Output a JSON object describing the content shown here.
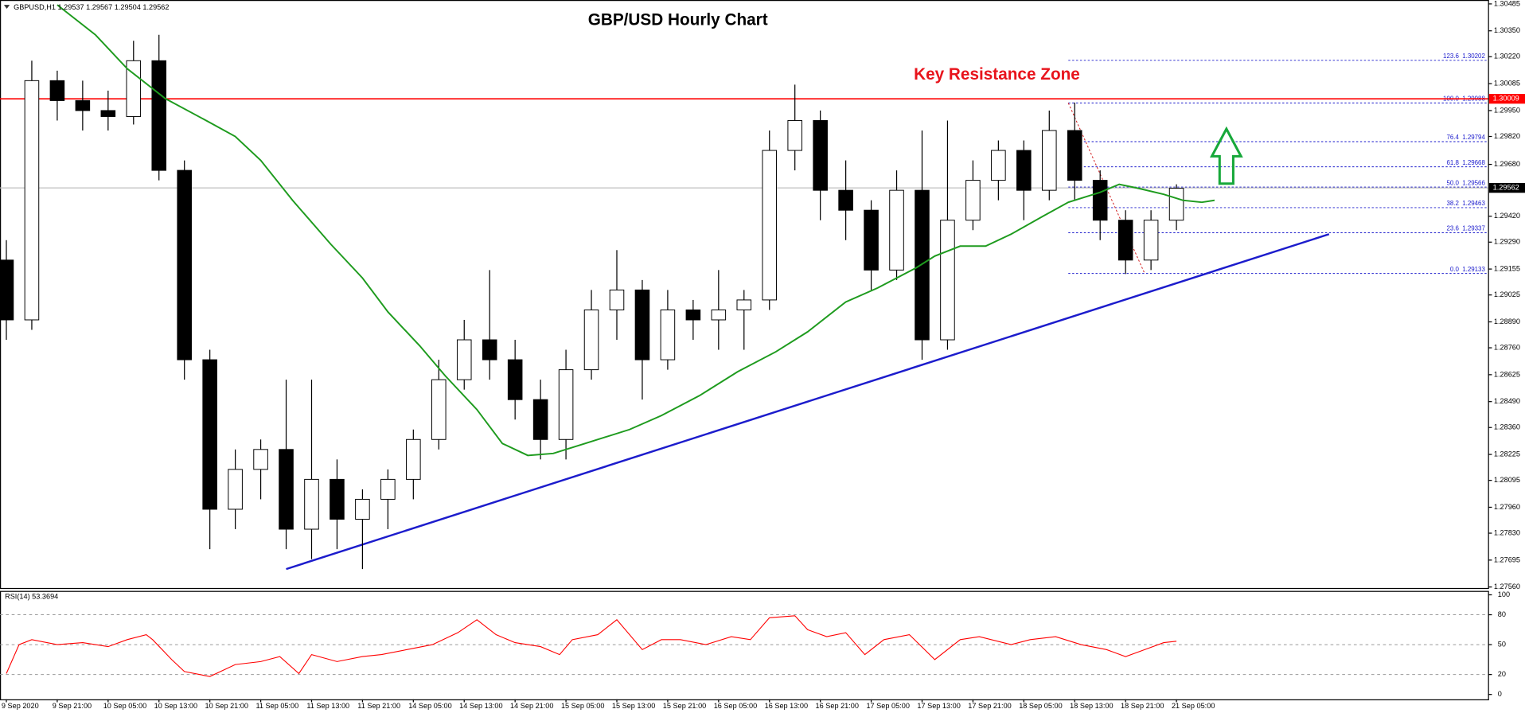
{
  "chart_data": [
    {
      "type": "candlestick",
      "title": "GBP/USD Hourly Chart",
      "header": "GBPUSD,H1  1.29537 1.29567 1.29504 1.29562",
      "annotation": "Key Resistance Zone",
      "x": [
        0,
        4,
        8,
        12,
        16,
        20,
        24,
        28,
        32,
        36,
        40,
        44,
        48,
        52,
        56,
        60,
        64,
        68,
        72,
        76,
        80,
        84,
        88,
        92,
        96,
        100,
        104,
        108,
        112,
        116,
        120,
        124,
        128,
        132,
        136,
        140,
        144,
        148,
        152,
        156,
        160,
        164,
        168,
        172,
        176,
        180,
        184
      ],
      "open": [
        1.292,
        1.289,
        1.301,
        1.3,
        1.2995,
        1.2992,
        1.302,
        1.2965,
        1.287,
        1.2795,
        1.2815,
        1.2825,
        1.2785,
        1.281,
        1.279,
        1.28,
        1.281,
        1.283,
        1.286,
        1.288,
        1.287,
        1.285,
        1.283,
        1.2865,
        1.2895,
        1.2905,
        1.287,
        1.2895,
        1.289,
        1.2895,
        1.29,
        1.2975,
        1.299,
        1.2955,
        1.2945,
        1.2915,
        1.2955,
        1.288,
        1.294,
        1.296,
        1.2975,
        1.2955,
        1.2985,
        1.296,
        1.294,
        1.292,
        1.294
      ],
      "high": [
        1.293,
        1.302,
        1.3015,
        1.301,
        1.3005,
        1.303,
        1.3033,
        1.297,
        1.2875,
        1.2825,
        1.283,
        1.286,
        1.286,
        1.282,
        1.2805,
        1.2815,
        1.2835,
        1.287,
        1.289,
        1.2915,
        1.288,
        1.286,
        1.2875,
        1.2905,
        1.2925,
        1.291,
        1.2905,
        1.29,
        1.2915,
        1.2905,
        1.2985,
        1.3008,
        1.2995,
        1.297,
        1.295,
        1.2965,
        1.2985,
        1.299,
        1.297,
        1.298,
        1.298,
        1.2995,
        1.2999,
        1.2965,
        1.2945,
        1.2945,
        1.2958
      ],
      "low": [
        1.288,
        1.2885,
        1.299,
        1.2985,
        1.2985,
        1.2988,
        1.296,
        1.286,
        1.2775,
        1.2785,
        1.28,
        1.2775,
        1.277,
        1.2775,
        1.2765,
        1.2785,
        1.28,
        1.2825,
        1.2855,
        1.286,
        1.284,
        1.282,
        1.282,
        1.286,
        1.288,
        1.285,
        1.2865,
        1.288,
        1.2875,
        1.2875,
        1.2895,
        1.2965,
        1.294,
        1.293,
        1.2905,
        1.291,
        1.287,
        1.2875,
        1.2935,
        1.295,
        1.294,
        1.295,
        1.295,
        1.293,
        1.2913,
        1.2915,
        1.2935
      ],
      "close": [
        1.289,
        1.301,
        1.3,
        1.2995,
        1.2992,
        1.302,
        1.2965,
        1.287,
        1.2795,
        1.2815,
        1.2825,
        1.2785,
        1.281,
        1.279,
        1.28,
        1.281,
        1.283,
        1.286,
        1.288,
        1.287,
        1.285,
        1.283,
        1.2865,
        1.2895,
        1.2905,
        1.287,
        1.2895,
        1.289,
        1.2895,
        1.29,
        1.2975,
        1.299,
        1.2955,
        1.2945,
        1.2915,
        1.2955,
        1.288,
        1.294,
        1.296,
        1.2975,
        1.2955,
        1.2985,
        1.296,
        1.294,
        1.292,
        1.294,
        1.2956
      ],
      "up_color": "#ffffff",
      "down_color": "#000000",
      "wick_color": "#000000",
      "xlim": [
        -1,
        233
      ],
      "ylim": [
        1.2756,
        1.30485
      ],
      "yticks": [
        1.30485,
        {
          "value": 1.3035,
          "label": "1.30350"
        },
        {
          "value": 1.3022,
          "label": "1.30220"
        },
        1.30085,
        {
          "value": 1.2995,
          "label": "1.29950"
        },
        {
          "value": 1.2982,
          "label": "1.29820"
        },
        {
          "value": 1.2968,
          "label": "1.29680"
        },
        {
          "value": 1.2942,
          "label": "1.29420"
        },
        {
          "value": 1.2929,
          "label": "1.29290"
        },
        1.29155,
        1.29025,
        {
          "value": 1.2889,
          "label": "1.28890"
        },
        {
          "value": 1.2876,
          "label": "1.28760"
        },
        1.28625,
        {
          "value": 1.2849,
          "label": "1.28490"
        },
        {
          "value": 1.2836,
          "label": "1.28360"
        },
        1.28225,
        1.28095,
        {
          "value": 1.2796,
          "label": "1.27960"
        },
        {
          "value": 1.2783,
          "label": "1.27830"
        },
        1.27695,
        {
          "value": 1.2756,
          "label": "1.27560"
        }
      ],
      "moving_average": {
        "color": "#1e9b1e",
        "x": [
          8,
          14,
          19,
          25,
          32,
          36,
          40,
          45,
          51,
          56,
          60,
          65,
          69,
          74,
          78,
          82,
          86,
          91,
          98,
          103,
          109,
          115,
          121,
          126,
          132,
          137,
          143,
          146,
          150,
          154,
          158,
          163,
          167,
          172,
          175,
          178,
          182,
          185,
          188,
          190
        ],
        "values": [
          1.3048,
          1.3033,
          1.3016,
          1.3001,
          1.2989,
          1.2982,
          1.297,
          1.295,
          1.2928,
          1.2911,
          1.2894,
          1.2877,
          1.2862,
          1.2845,
          1.2828,
          1.2822,
          1.2823,
          1.2828,
          1.2835,
          1.2842,
          1.2852,
          1.2864,
          1.2874,
          1.2884,
          1.2899,
          1.2906,
          1.2916,
          1.2922,
          1.2927,
          1.2927,
          1.2933,
          1.2942,
          1.2949,
          1.2954,
          1.2958,
          1.2956,
          1.2953,
          1.295,
          1.2949,
          1.295
        ]
      },
      "trendline": {
        "color": "#1c1ccc",
        "x": [
          44,
          208
        ],
        "values": [
          1.2765,
          1.2933
        ]
      },
      "resistance": {
        "value": 1.30009,
        "color": "#ff0000"
      },
      "current_price": {
        "value": 1.29562,
        "color": "#c0c0c0"
      },
      "fibonacci": {
        "color": "#1a1acc",
        "x": [
          167,
          179
        ],
        "levels": [
          {
            "ratio": 123.6,
            "price": 1.30202
          },
          {
            "ratio": {
              "value": 100,
              "label": "100.0"
            },
            "price": 1.29988
          },
          {
            "ratio": 76.4,
            "price": 1.29794
          },
          {
            "ratio": 61.8,
            "price": 1.29668
          },
          {
            "ratio": {
              "value": 50,
              "label": "50.0"
            },
            "price": 1.29566
          },
          {
            "ratio": 38.2,
            "price": 1.29463
          },
          {
            "ratio": 23.6,
            "price": 1.29337
          },
          {
            "ratio": {
              "value": 0,
              "label": "0.0"
            },
            "price": 1.29133
          }
        ]
      }
    },
    {
      "type": "line",
      "title": "RSI(14) 53.3694",
      "color": "#ff0000",
      "x": [
        0,
        2,
        4,
        8,
        12,
        16,
        19,
        22,
        23,
        26,
        28,
        32,
        36,
        40,
        43,
        46,
        48,
        52,
        56,
        59,
        63,
        67,
        71,
        74,
        77,
        80,
        84,
        87,
        89,
        93,
        96,
        100,
        103,
        106,
        110,
        114,
        117,
        120,
        124,
        126,
        129,
        132,
        135,
        138,
        142,
        146,
        150,
        153,
        158,
        161,
        165,
        169,
        173,
        176,
        179,
        182,
        184
      ],
      "values": [
        21,
        50,
        55,
        50,
        52,
        48,
        55,
        60,
        55,
        35,
        23,
        18,
        30,
        33,
        38,
        21,
        40,
        33,
        38,
        40,
        45,
        50,
        62,
        75,
        60,
        52,
        48,
        40,
        55,
        60,
        75,
        45,
        55,
        55,
        50,
        58,
        55,
        77,
        79,
        65,
        58,
        62,
        40,
        55,
        60,
        35,
        55,
        58,
        50,
        55,
        58,
        50,
        45,
        38,
        45,
        52,
        53.37
      ],
      "xlim": [
        -1,
        233
      ],
      "ylim": [
        0,
        100
      ],
      "yticks": [
        100,
        80,
        50,
        20,
        0
      ],
      "level_lines": true,
      "xticks": [
        {
          "value": 0,
          "label": "9 Sep 2020"
        },
        {
          "value": 8,
          "label": "9 Sep 21:00"
        },
        {
          "value": 16,
          "label": "10 Sep 05:00"
        },
        {
          "value": 24,
          "label": "10 Sep 13:00"
        },
        {
          "value": 32,
          "label": "10 Sep 21:00"
        },
        {
          "value": 40,
          "label": "11 Sep 05:00"
        },
        {
          "value": 48,
          "label": "11 Sep 13:00"
        },
        {
          "value": 56,
          "label": "11 Sep 21:00"
        },
        {
          "value": 64,
          "label": "14 Sep 05:00"
        },
        {
          "value": 72,
          "label": "14 Sep 13:00"
        },
        {
          "value": 80,
          "label": "14 Sep 21:00"
        },
        {
          "value": 88,
          "label": "15 Sep 05:00"
        },
        {
          "value": 96,
          "label": "15 Sep 13:00"
        },
        {
          "value": 104,
          "label": "15 Sep 21:00"
        },
        {
          "value": 112,
          "label": "16 Sep 05:00"
        },
        {
          "value": 120,
          "label": "16 Sep 13:00"
        },
        {
          "value": 128,
          "label": "16 Sep 21:00"
        },
        {
          "value": 136,
          "label": "17 Sep 05:00"
        },
        {
          "value": 144,
          "label": "17 Sep 13:00"
        },
        {
          "value": 152,
          "label": "17 Sep 21:00"
        },
        {
          "value": 160,
          "label": "18 Sep 05:00"
        },
        {
          "value": 168,
          "label": "18 Sep 13:00"
        },
        {
          "value": 176,
          "label": "18 Sep 21:00"
        },
        {
          "value": 184,
          "label": "21 Sep 05:00"
        }
      ]
    }
  ]
}
